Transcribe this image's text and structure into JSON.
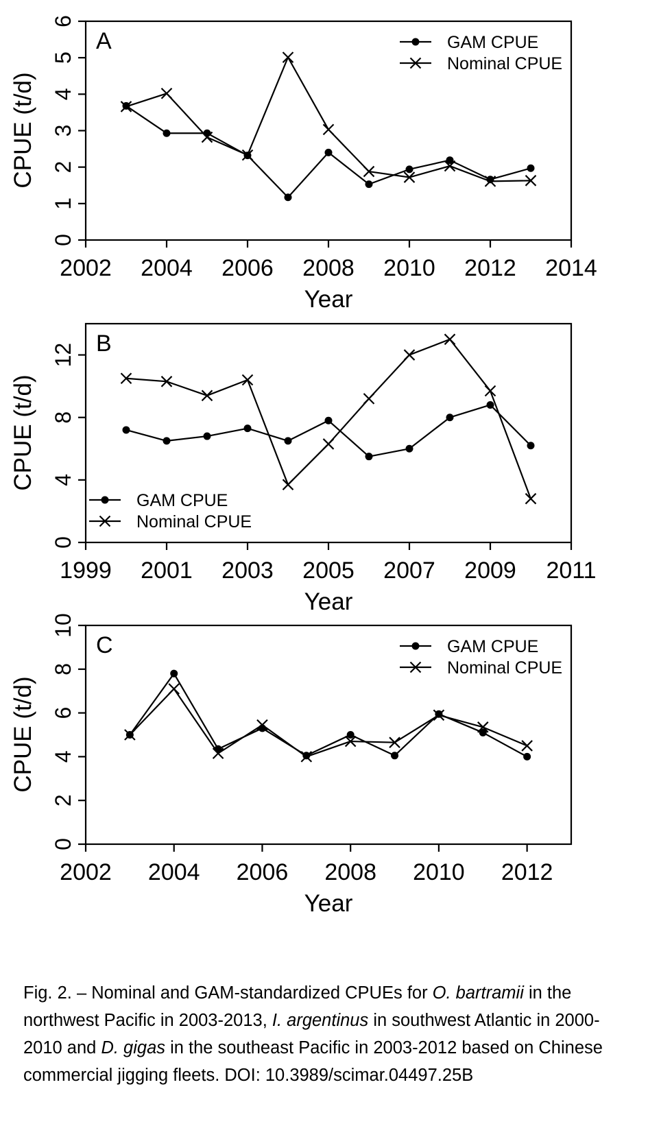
{
  "chart_data": [
    {
      "type": "line",
      "panel_label": "A",
      "xlabel": "Year",
      "ylabel": "CPUE (t/d)",
      "xlim": [
        2002,
        2014
      ],
      "ylim": [
        0,
        6
      ],
      "xticks": [
        2002,
        2004,
        2006,
        2008,
        2010,
        2012,
        2014
      ],
      "yticks": [
        0,
        1,
        2,
        3,
        4,
        5,
        6
      ],
      "legend_position": "top-right",
      "series": [
        {
          "name": "GAM CPUE",
          "marker": "dot",
          "x": [
            2003,
            2004,
            2005,
            2006,
            2007,
            2008,
            2009,
            2010,
            2011,
            2012,
            2013
          ],
          "values": [
            3.68,
            2.93,
            2.93,
            2.32,
            1.17,
            2.4,
            1.53,
            1.94,
            2.19,
            1.66,
            1.97
          ]
        },
        {
          "name": "Nominal CPUE",
          "marker": "cross",
          "x": [
            2003,
            2004,
            2005,
            2006,
            2007,
            2008,
            2009,
            2010,
            2011,
            2012,
            2013
          ],
          "values": [
            3.66,
            4.02,
            2.82,
            2.33,
            5.01,
            3.03,
            1.88,
            1.72,
            2.03,
            1.61,
            1.63
          ]
        }
      ]
    },
    {
      "type": "line",
      "panel_label": "B",
      "xlabel": "Year",
      "ylabel": "CPUE (t/d)",
      "xlim": [
        1999,
        2011
      ],
      "ylim": [
        0,
        14
      ],
      "xticks": [
        1999,
        2001,
        2003,
        2005,
        2007,
        2009,
        2011
      ],
      "yticks": [
        0,
        4,
        8,
        12
      ],
      "legend_position": "bottom-left",
      "series": [
        {
          "name": "GAM CPUE",
          "marker": "dot",
          "x": [
            2000,
            2001,
            2002,
            2003,
            2004,
            2005,
            2006,
            2007,
            2008,
            2009,
            2010
          ],
          "values": [
            7.2,
            6.5,
            6.8,
            7.3,
            6.5,
            7.8,
            5.5,
            6.0,
            8.0,
            8.8,
            6.2
          ]
        },
        {
          "name": "Nominal CPUE",
          "marker": "cross",
          "x": [
            2000,
            2001,
            2002,
            2003,
            2004,
            2005,
            2006,
            2007,
            2008,
            2009,
            2010
          ],
          "values": [
            10.5,
            10.3,
            9.4,
            10.4,
            3.7,
            6.3,
            9.2,
            12.0,
            13.0,
            9.7,
            2.8
          ]
        }
      ]
    },
    {
      "type": "line",
      "panel_label": "C",
      "xlabel": "Year",
      "ylabel": "CPUE (t/d)",
      "xlim": [
        2002,
        2013
      ],
      "ylim": [
        0,
        10
      ],
      "xticks": [
        2002,
        2004,
        2006,
        2008,
        2010,
        2012
      ],
      "yticks": [
        0,
        2,
        4,
        6,
        8,
        10
      ],
      "legend_position": "top-right",
      "series": [
        {
          "name": "GAM CPUE",
          "marker": "dot",
          "x": [
            2003,
            2004,
            2005,
            2006,
            2007,
            2008,
            2009,
            2010,
            2011,
            2012
          ],
          "values": [
            5.0,
            7.8,
            4.35,
            5.3,
            4.05,
            5.0,
            4.05,
            5.95,
            5.1,
            4.0
          ]
        },
        {
          "name": "Nominal CPUE",
          "marker": "cross",
          "x": [
            2003,
            2004,
            2005,
            2006,
            2007,
            2008,
            2009,
            2010,
            2011,
            2012
          ],
          "values": [
            5.0,
            7.1,
            4.15,
            5.45,
            4.0,
            4.7,
            4.65,
            5.9,
            5.35,
            4.5
          ]
        }
      ]
    }
  ],
  "caption": {
    "t1": "Fig. 2. – Nominal and GAM-standardized CPUEs for ",
    "i1": "O. bartramii",
    "t2": " in the northwest Pacific in 2003-2013, ",
    "i2": "I. argentinus",
    "t3": " in southwest Atlantic in 2000-2010 and ",
    "i3": "D. gigas",
    "t4": " in the southeast Pacific in 2003-2012 based on Chinese commercial jigging fleets. DOI: 10.3989/scimar.04497.25B"
  }
}
